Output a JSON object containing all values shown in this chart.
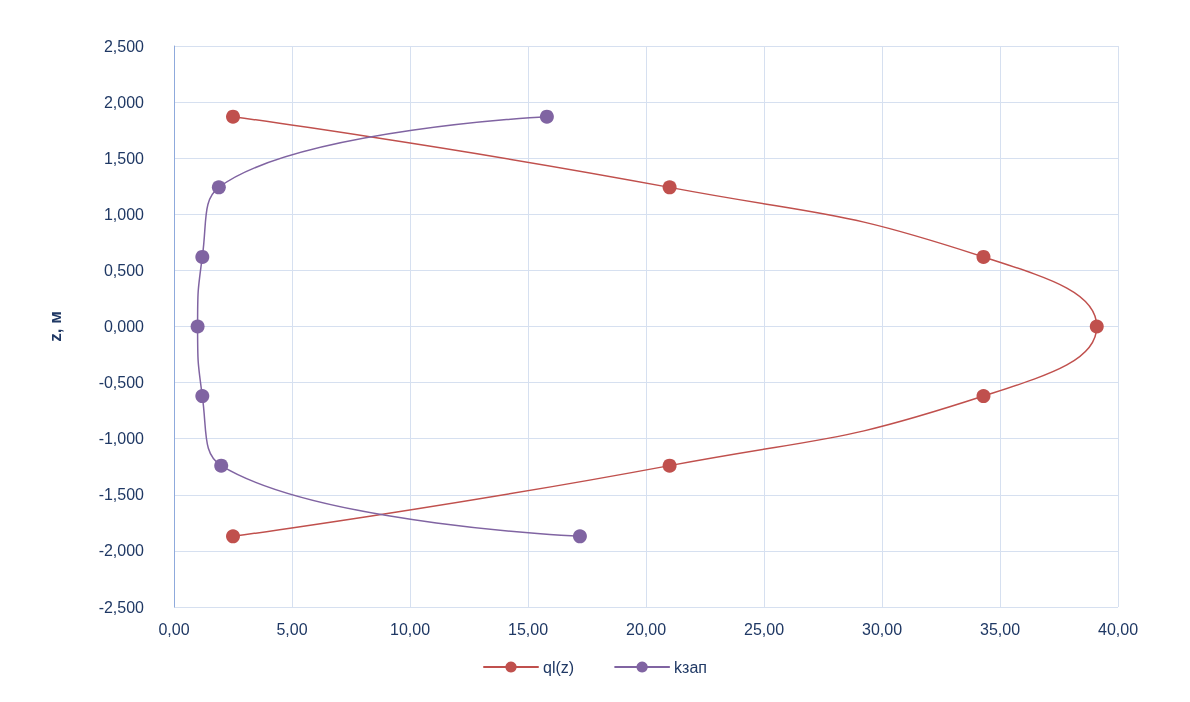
{
  "chart_data": {
    "type": "line",
    "ylabel": "z, м",
    "xlim": [
      0,
      40
    ],
    "xticks": [
      {
        "value": 0,
        "label": "0,00"
      },
      {
        "value": 5,
        "label": "5,00"
      },
      {
        "value": 10,
        "label": "10,00"
      },
      {
        "value": 15,
        "label": "15,00"
      },
      {
        "value": 20,
        "label": "20,00"
      },
      {
        "value": 25,
        "label": "25,00"
      },
      {
        "value": 30,
        "label": "30,00"
      },
      {
        "value": 35,
        "label": "35,00"
      },
      {
        "value": 40,
        "label": "40,00"
      }
    ],
    "ylim": [
      -2.5,
      2.5
    ],
    "yticks": [
      {
        "value": -2.5,
        "label": "-2,500"
      },
      {
        "value": -2,
        "label": "-2,000"
      },
      {
        "value": -1.5,
        "label": "-1,500"
      },
      {
        "value": -1,
        "label": "-1,000"
      },
      {
        "value": -0.5,
        "label": "-0,500"
      },
      {
        "value": 0,
        "label": "0,000"
      },
      {
        "value": 0.5,
        "label": "0,500"
      },
      {
        "value": 1,
        "label": "1,000"
      },
      {
        "value": 1.5,
        "label": "1,500"
      },
      {
        "value": 2,
        "label": "2,000"
      },
      {
        "value": 2.5,
        "label": "2,500"
      }
    ],
    "grid": true,
    "legend": "bottom",
    "marker": "circle",
    "line_style": "solid",
    "series": [
      {
        "name": "ql(z)",
        "color": "#c0504d",
        "x": [
          2.5,
          21.0,
          34.3,
          39.1,
          34.3,
          21.0,
          2.5
        ],
        "values": [
          1.87,
          1.24,
          0.62,
          0,
          -0.62,
          -1.24,
          -1.87
        ]
      },
      {
        "name": "kзап",
        "color": "#8064a2",
        "x": [
          15.8,
          1.9,
          1.2,
          1.0,
          1.2,
          2.0,
          17.2
        ],
        "values": [
          1.87,
          1.24,
          0.62,
          0,
          -0.62,
          -1.24,
          -1.87
        ]
      }
    ]
  }
}
